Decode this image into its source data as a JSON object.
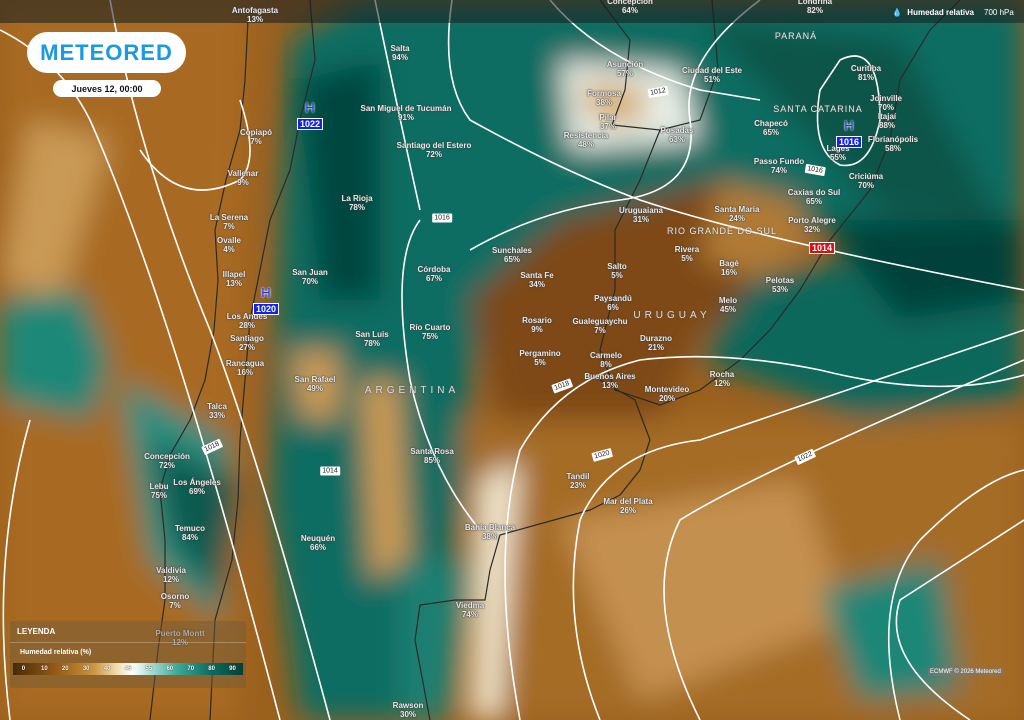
{
  "header": {
    "logo": "METEORED",
    "date": "Jueves 12, 00:00"
  },
  "layer": {
    "icon": "humidity-drop-icon",
    "name": "Humedad relativa",
    "level": "700 hPa"
  },
  "legend": {
    "title": "LEYENDA",
    "subtitle": "Humedad relativa (%)",
    "ticks": [
      "0",
      "10",
      "20",
      "30",
      "40",
      "45",
      "55",
      "60",
      "70",
      "80",
      "90"
    ]
  },
  "credit": "ECMWF © 2026 Meteored",
  "colors": {
    "dry": "#9a601e",
    "moist": "#0d6d62",
    "very_moist": "#053f38",
    "high": "#1224e8",
    "low": "#e01010"
  },
  "regions": [
    "PARANÁ",
    "SANTA CATARINA",
    "RIO GRANDE DO SUL",
    "URUGUAY",
    "ARGENTINA"
  ],
  "pressure_centers": [
    {
      "letter": "H",
      "value": "1022"
    },
    {
      "letter": "H",
      "value": "1020"
    },
    {
      "letter": "H",
      "value": "1016"
    },
    {
      "letter": "",
      "value": "1014"
    }
  ],
  "isobar_labels": [
    "1012",
    "1016",
    "1016",
    "1018",
    "1018",
    "1014",
    "1020",
    "1022"
  ],
  "cities": [
    {
      "name": "Antofagasta",
      "value": "13%"
    },
    {
      "name": "Concepción",
      "value": "64%"
    },
    {
      "name": "Londrina",
      "value": "82%"
    },
    {
      "name": "Salta",
      "value": "94%"
    },
    {
      "name": "San Miguel de Tucumán",
      "value": "91%"
    },
    {
      "name": "Santiago del Estero",
      "value": "72%"
    },
    {
      "name": "La Rioja",
      "value": "78%"
    },
    {
      "name": "Asunción",
      "value": "57%"
    },
    {
      "name": "Formosa",
      "value": "38%"
    },
    {
      "name": "Pilar",
      "value": "37%"
    },
    {
      "name": "Resistencia",
      "value": "48%"
    },
    {
      "name": "Posadas",
      "value": "63%"
    },
    {
      "name": "Ciudad del Este",
      "value": "51%"
    },
    {
      "name": "Curitiba",
      "value": "81%"
    },
    {
      "name": "Joinville",
      "value": "70%"
    },
    {
      "name": "Itajaí",
      "value": "88%"
    },
    {
      "name": "Florianópolis",
      "value": "58%"
    },
    {
      "name": "Chapecó",
      "value": "65%"
    },
    {
      "name": "Lages",
      "value": "55%"
    },
    {
      "name": "Passo Fundo",
      "value": "74%"
    },
    {
      "name": "Criciúma",
      "value": "70%"
    },
    {
      "name": "Caxias do Sul",
      "value": "65%"
    },
    {
      "name": "Santa Maria",
      "value": "24%"
    },
    {
      "name": "Porto Alegre",
      "value": "32%"
    },
    {
      "name": "Pelotas",
      "value": "53%"
    },
    {
      "name": "Rivera",
      "value": "5%"
    },
    {
      "name": "Bagé",
      "value": "16%"
    },
    {
      "name": "Melo",
      "value": "45%"
    },
    {
      "name": "Uruguaiana",
      "value": "31%"
    },
    {
      "name": "Salto",
      "value": "5%"
    },
    {
      "name": "Paysandú",
      "value": "6%"
    },
    {
      "name": "Gualeguaychu",
      "value": "7%"
    },
    {
      "name": "Durazno",
      "value": "21%"
    },
    {
      "name": "Carmelo",
      "value": "8%"
    },
    {
      "name": "Buenos Aires",
      "value": "13%"
    },
    {
      "name": "Montevideo",
      "value": "20%"
    },
    {
      "name": "Rocha",
      "value": "12%"
    },
    {
      "name": "Rosario",
      "value": "9%"
    },
    {
      "name": "Pergamino",
      "value": "5%"
    },
    {
      "name": "Sunchales",
      "value": "65%"
    },
    {
      "name": "Santa Fe",
      "value": "34%"
    },
    {
      "name": "Córdoba",
      "value": "67%"
    },
    {
      "name": "Río Cuarto",
      "value": "75%"
    },
    {
      "name": "San Luis",
      "value": "78%"
    },
    {
      "name": "San Juan",
      "value": "70%"
    },
    {
      "name": "San Rafael",
      "value": "49%"
    },
    {
      "name": "Copiapó",
      "value": "7%"
    },
    {
      "name": "Vallenar",
      "value": "9%"
    },
    {
      "name": "La Serena",
      "value": "7%"
    },
    {
      "name": "Ovalle",
      "value": "4%"
    },
    {
      "name": "Illapel",
      "value": "13%"
    },
    {
      "name": "Los Andes",
      "value": "28%"
    },
    {
      "name": "Santiago",
      "value": "27%"
    },
    {
      "name": "Rancagua",
      "value": "16%"
    },
    {
      "name": "Talca",
      "value": "33%"
    },
    {
      "name": "Concepción",
      "value": "72%"
    },
    {
      "name": "Los Ángeles",
      "value": "69%"
    },
    {
      "name": "Lebu",
      "value": "75%"
    },
    {
      "name": "Temuco",
      "value": "84%"
    },
    {
      "name": "Valdivia",
      "value": "12%"
    },
    {
      "name": "Osorno",
      "value": "7%"
    },
    {
      "name": "Puerto Montt",
      "value": "12%"
    },
    {
      "name": "Neuquén",
      "value": "66%"
    },
    {
      "name": "Santa Rosa",
      "value": "85%"
    },
    {
      "name": "Bahía Blanca",
      "value": "38%"
    },
    {
      "name": "Tandil",
      "value": "23%"
    },
    {
      "name": "Mar del Plata",
      "value": "26%"
    },
    {
      "name": "Viedma",
      "value": "74%"
    },
    {
      "name": "Rawson",
      "value": "30%"
    }
  ]
}
